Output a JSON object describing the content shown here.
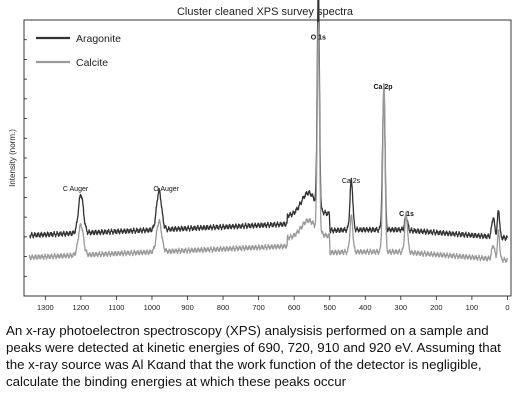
{
  "chart_data": {
    "type": "line",
    "title": "Cluster cleaned XPS survey spectra",
    "xlabel": "",
    "ylabel": "Intensity (norm.)",
    "xlim": [
      1360,
      -10
    ],
    "x_reversed": true,
    "xticks": [
      1300,
      1200,
      1100,
      1000,
      900,
      800,
      700,
      600,
      500,
      400,
      300,
      200,
      100,
      0
    ],
    "grid": false,
    "legend_position": "top-left",
    "series": [
      {
        "name": "Aragonite",
        "color": "#333333",
        "stroke_width": 2.2,
        "baseline": 0.22,
        "peaks": [
          {
            "x": 1200,
            "h": 0.14,
            "w": 7
          },
          {
            "x": 980,
            "h": 0.14,
            "w": 7
          },
          {
            "x": 560,
            "h": 0.08,
            "w": 20
          },
          {
            "x": 532,
            "h": 0.8,
            "w": 3
          },
          {
            "x": 439,
            "h": 0.18,
            "w": 4
          },
          {
            "x": 347,
            "h": 0.44,
            "w": 3
          },
          {
            "x": 351,
            "h": 0.14,
            "w": 3
          },
          {
            "x": 285,
            "h": 0.05,
            "w": 4
          },
          {
            "x": 40,
            "h": 0.07,
            "w": 4
          },
          {
            "x": 25,
            "h": 0.1,
            "w": 3
          }
        ]
      },
      {
        "name": "Calcite",
        "color": "#9a9a9a",
        "stroke_width": 2.2,
        "baseline": 0.14,
        "peaks": [
          {
            "x": 1200,
            "h": 0.11,
            "w": 7
          },
          {
            "x": 980,
            "h": 0.11,
            "w": 7
          },
          {
            "x": 560,
            "h": 0.06,
            "w": 20
          },
          {
            "x": 532,
            "h": 0.76,
            "w": 3
          },
          {
            "x": 439,
            "h": 0.13,
            "w": 4
          },
          {
            "x": 347,
            "h": 0.56,
            "w": 3
          },
          {
            "x": 351,
            "h": 0.12,
            "w": 3
          },
          {
            "x": 285,
            "h": 0.14,
            "w": 4
          },
          {
            "x": 40,
            "h": 0.05,
            "w": 4
          },
          {
            "x": 25,
            "h": 0.1,
            "w": 3
          }
        ]
      }
    ],
    "annotations": [
      {
        "text": "O 1s",
        "x": 532,
        "level": 0.93
      },
      {
        "text": "Ca 2p",
        "x": 350,
        "level": 0.75
      },
      {
        "text": "Ca 2s",
        "x": 440,
        "level": 0.41
      },
      {
        "text": "C 1s",
        "x": 284,
        "level": 0.29
      },
      {
        "text": "C Auger",
        "x": 1215,
        "level": 0.38
      },
      {
        "text": "O Auger",
        "x": 960,
        "level": 0.38
      }
    ]
  },
  "question": "An x-ray photoelectron spectroscopy (XPS) analysisis performed on a sample and peaks were detected at kinetic energies of 690, 720, 910 and 920 eV. Assuming that the x-ray source was Al Kαand that the work function of the detector is negligible, calculate the binding energies at which these peaks occur"
}
